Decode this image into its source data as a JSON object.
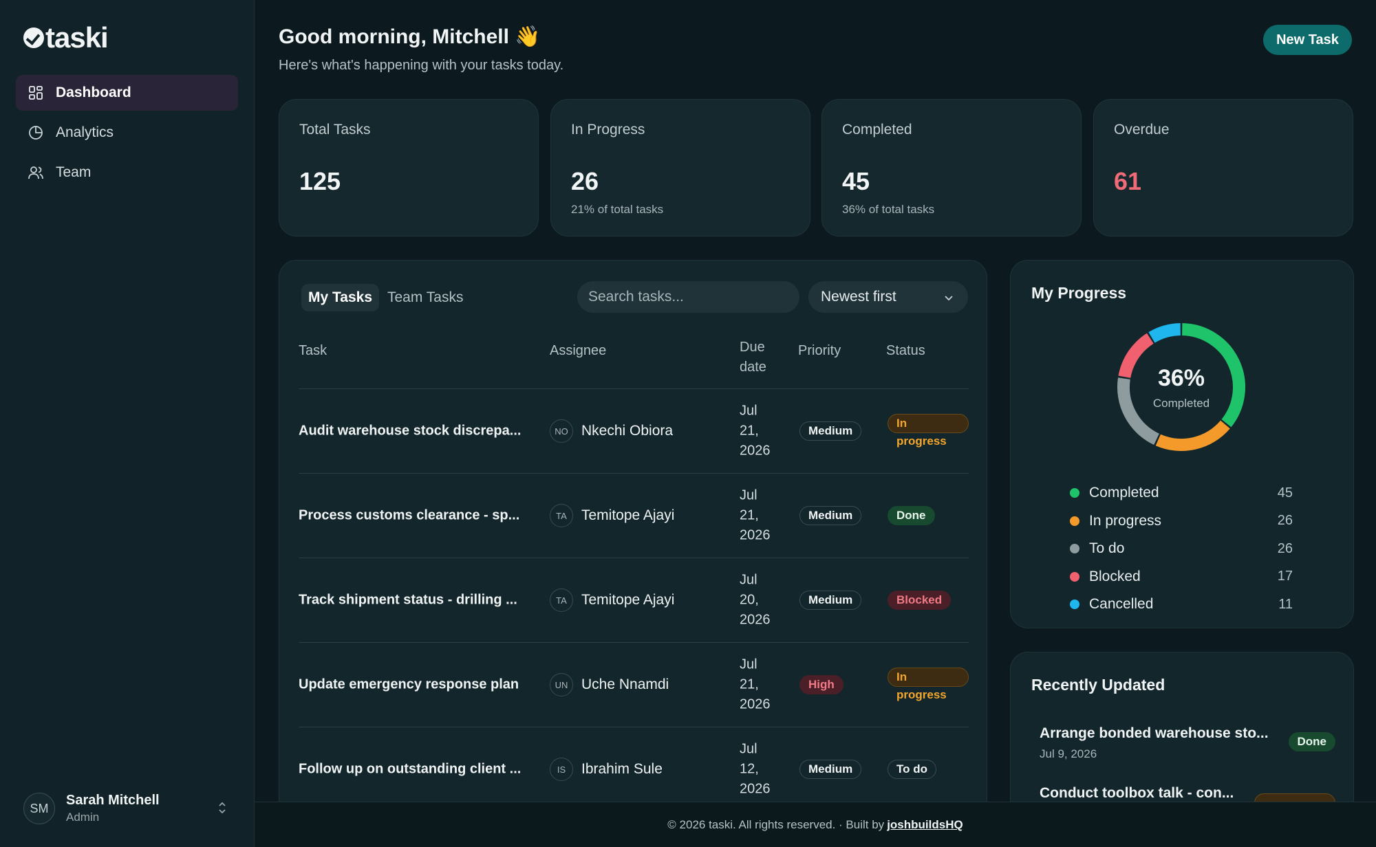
{
  "brand": {
    "name": "taski"
  },
  "sidebar": {
    "items": [
      {
        "label": "Dashboard",
        "icon": "dashboard-grid-icon",
        "active": true
      },
      {
        "label": "Analytics",
        "icon": "pie-chart-icon",
        "active": false
      },
      {
        "label": "Team",
        "icon": "users-icon",
        "active": false
      }
    ],
    "user": {
      "initials": "SM",
      "name": "Sarah Mitchell",
      "role": "Admin"
    }
  },
  "header": {
    "greeting": "Good morning, Mitchell 👋",
    "subtitle": "Here's what's happening with your tasks today.",
    "new_task_label": "New Task"
  },
  "stats": [
    {
      "label": "Total Tasks",
      "value": "125",
      "sub": ""
    },
    {
      "label": "In Progress",
      "value": "26",
      "sub": "21% of total tasks"
    },
    {
      "label": "Completed",
      "value": "45",
      "sub": "36% of total tasks"
    },
    {
      "label": "Overdue",
      "value": "61",
      "sub": "",
      "color": "#f06a78"
    }
  ],
  "tasks": {
    "tabs": [
      "My Tasks",
      "Team Tasks"
    ],
    "search_placeholder": "Search tasks...",
    "sort_value": "Newest first",
    "columns": {
      "task": "Task",
      "assignee": "Assignee",
      "due_1": "Due",
      "due_2": "date",
      "priority": "Priority",
      "status": "Status"
    },
    "rows": [
      {
        "task": "Audit warehouse stock discrepa...",
        "initials": "NO",
        "assignee": "Nkechi Obiora",
        "due": [
          "Jul",
          "21,",
          "2026"
        ],
        "priority": "Medium",
        "status": "In progress"
      },
      {
        "task": "Process customs clearance - sp...",
        "initials": "TA",
        "assignee": "Temitope Ajayi",
        "due": [
          "Jul",
          "21,",
          "2026"
        ],
        "priority": "Medium",
        "status": "Done"
      },
      {
        "task": "Track shipment status - drilling ...",
        "initials": "TA",
        "assignee": "Temitope Ajayi",
        "due": [
          "Jul",
          "20,",
          "2026"
        ],
        "priority": "Medium",
        "status": "Blocked"
      },
      {
        "task": "Update emergency response plan",
        "initials": "UN",
        "assignee": "Uche Nnamdi",
        "due": [
          "Jul",
          "21,",
          "2026"
        ],
        "priority": "High",
        "status": "In progress"
      },
      {
        "task": "Follow up on outstanding client ...",
        "initials": "IS",
        "assignee": "Ibrahim Sule",
        "due": [
          "Jul",
          "12,",
          "2026"
        ],
        "priority": "Medium",
        "status": "To do"
      }
    ]
  },
  "progress": {
    "title": "My Progress",
    "percent": "36%",
    "percent_label": "Completed",
    "segments": [
      {
        "label": "Completed",
        "value": 45,
        "color": "#1fc46a"
      },
      {
        "label": "In progress",
        "value": 26,
        "color": "#f49a2a"
      },
      {
        "label": "To do",
        "value": 26,
        "color": "#8e9ca0"
      },
      {
        "label": "Blocked",
        "value": 17,
        "color": "#f0606e"
      },
      {
        "label": "Cancelled",
        "value": 11,
        "color": "#1fb6ee"
      }
    ]
  },
  "recent": {
    "title": "Recently Updated",
    "items": [
      {
        "title": "Arrange bonded warehouse sto...",
        "date": "Jul 9, 2026",
        "status": "Done"
      },
      {
        "title": "Conduct toolbox talk - con...",
        "date": "",
        "status": ""
      }
    ]
  },
  "footer": {
    "text": "© 2026 taski. All rights reserved. · Built by",
    "link": "joshbuildsHQ"
  }
}
